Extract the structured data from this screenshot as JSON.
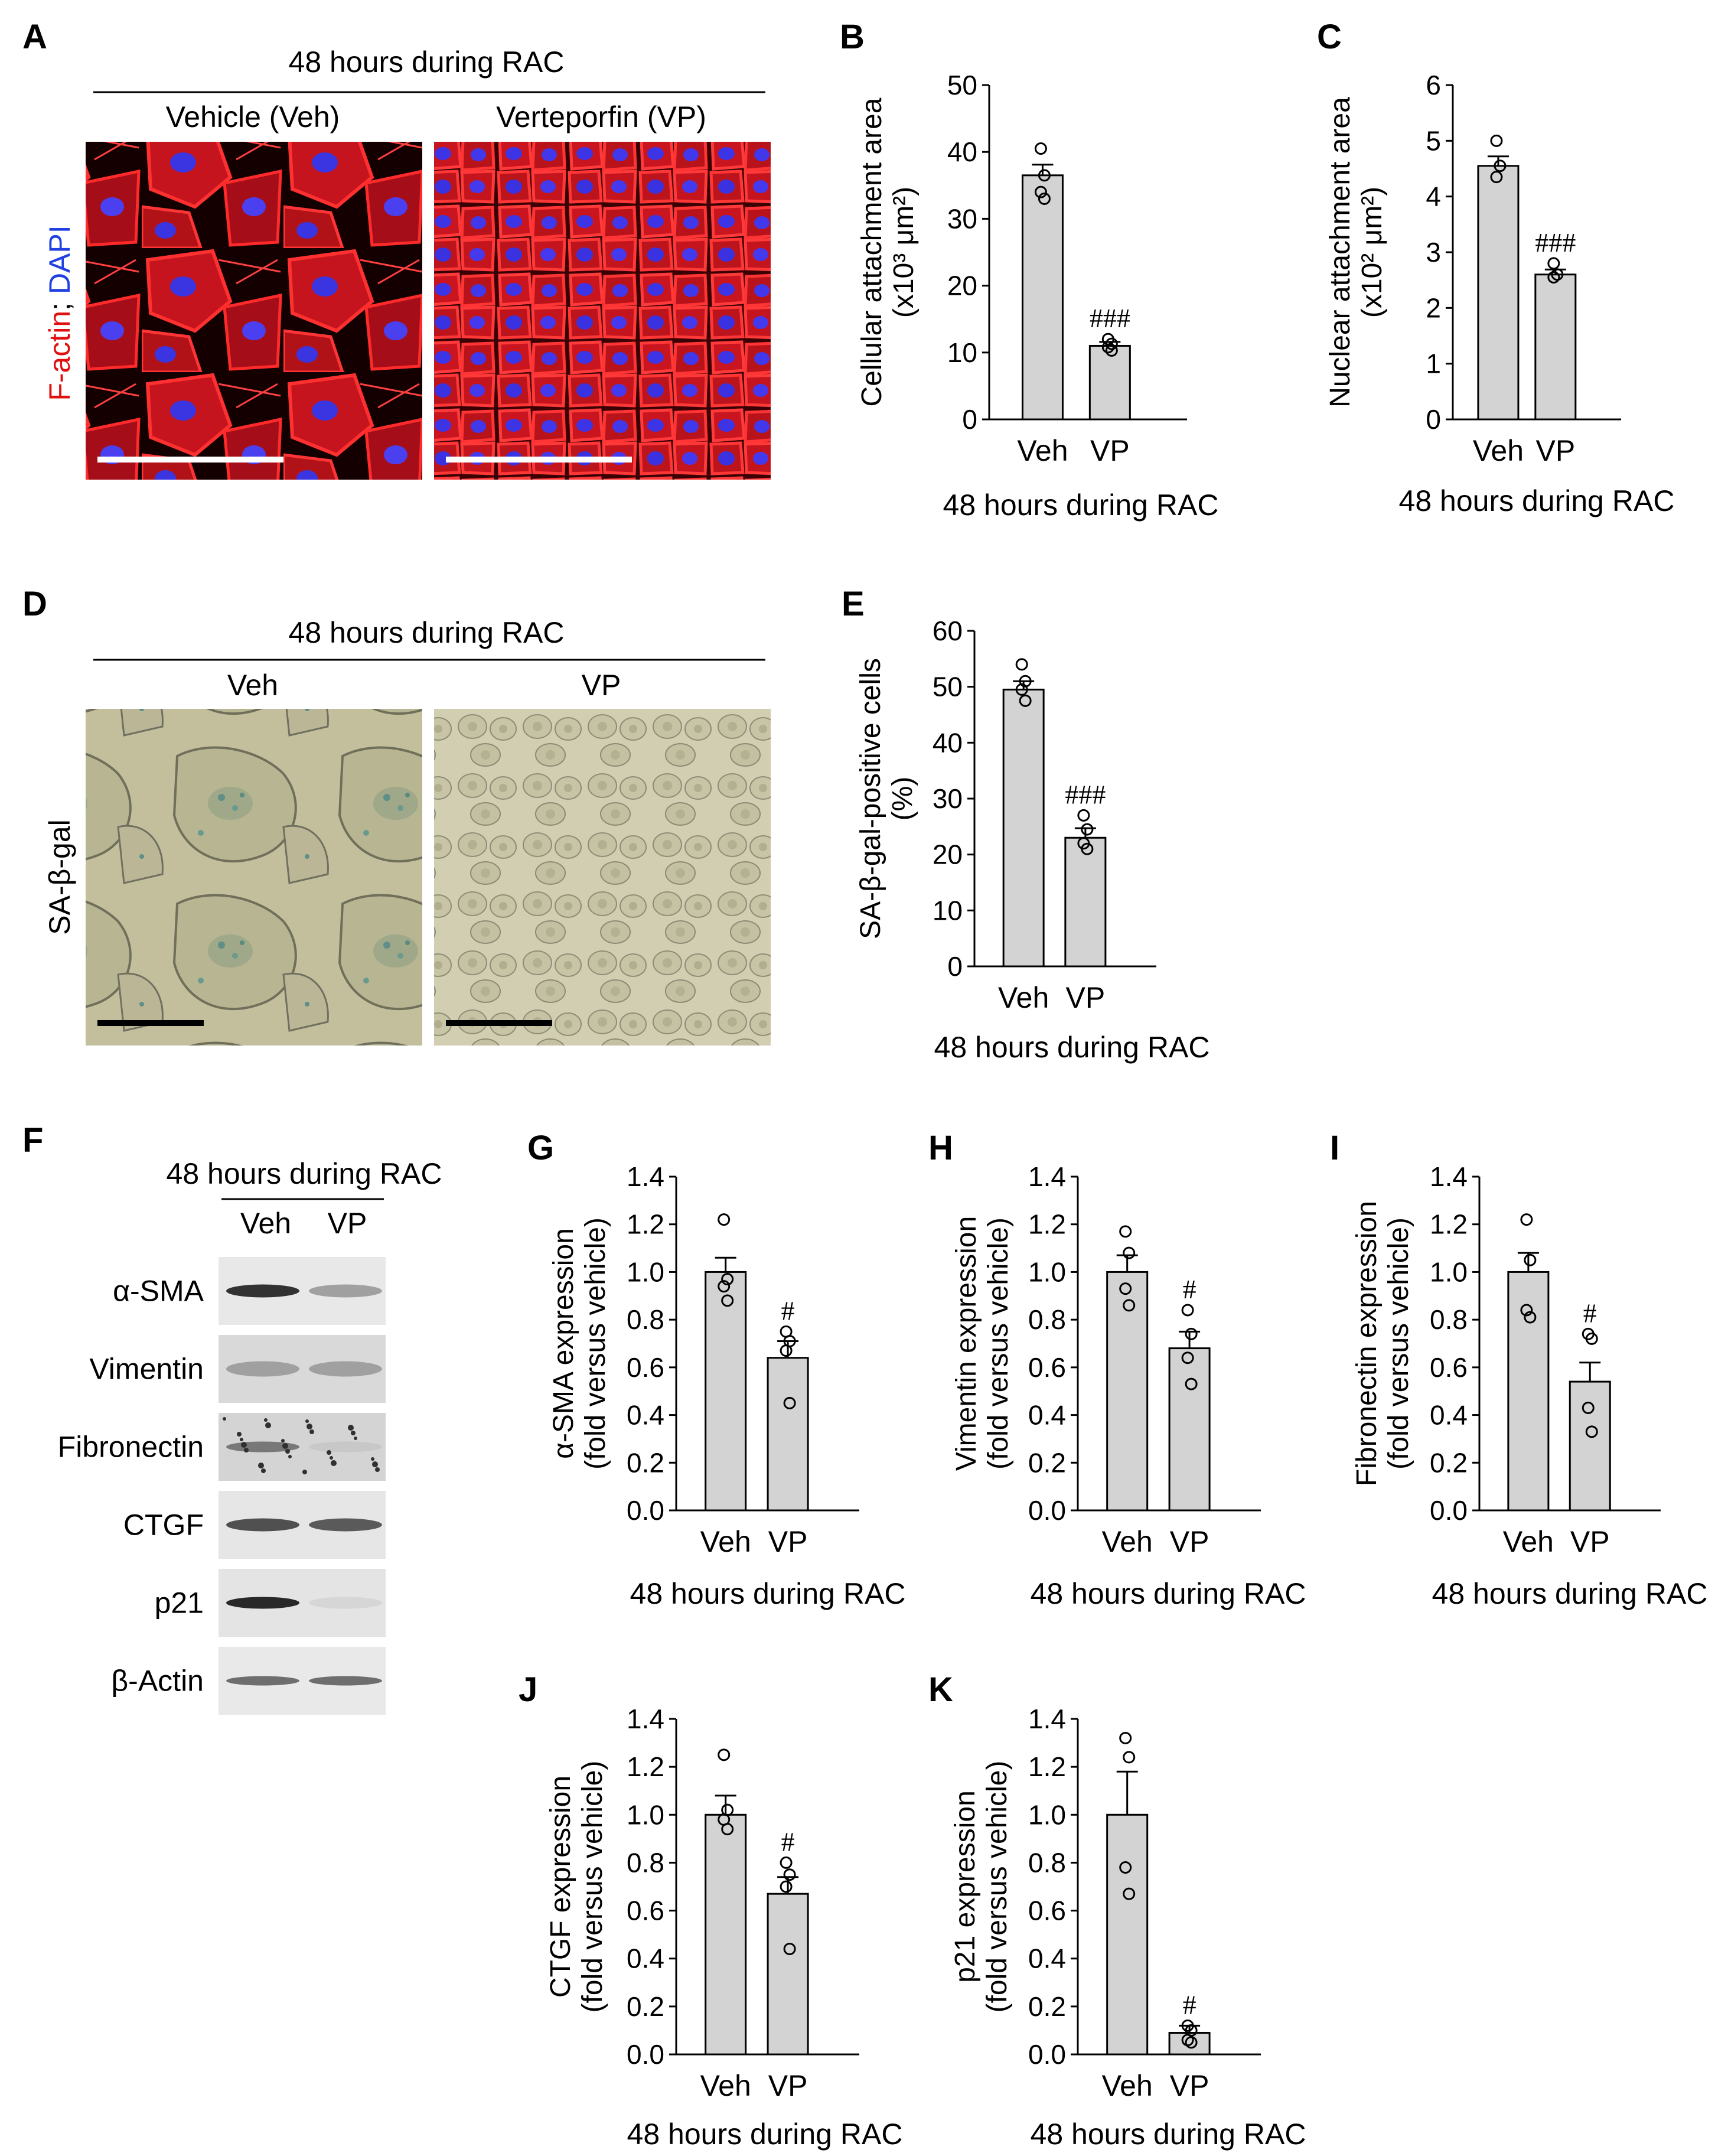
{
  "colors": {
    "bar_fill": "#d3d3d3",
    "bar_stroke": "#000000",
    "factin_label": "#e01010",
    "dapi_label": "#2040e0",
    "fluor_bg": "#0a0000",
    "sabgal_bg": "#c9c3a2"
  },
  "panel_a": {
    "letter": "A",
    "header": "48 hours during RAC",
    "col_labels": [
      "Vehicle (Veh)",
      "Verteporfin (VP)"
    ],
    "side_label_red": "F-actin",
    "side_label_sep": "; ",
    "side_label_blue": "DAPI"
  },
  "panel_d": {
    "letter": "D",
    "header": "48 hours during RAC",
    "col_labels": [
      "Veh",
      "VP"
    ],
    "side_label": "SA-β-gal"
  },
  "panel_f": {
    "letter": "F",
    "header": "48 hours during RAC",
    "col_labels": [
      "Veh",
      "VP"
    ],
    "rows": [
      "α-SMA",
      "Vimentin",
      "Fibronectin",
      "CTGF",
      "p21",
      "β-Actin"
    ]
  },
  "chart_data": [
    {
      "id": "B",
      "type": "bar",
      "letter": "B",
      "categories": [
        "Veh",
        "VP"
      ],
      "values": [
        36.5,
        11.0
      ],
      "errors": [
        1.6,
        0.6
      ],
      "points": [
        [
          40.5,
          36.5,
          34,
          33
        ],
        [
          12,
          11.3,
          10.8,
          10.3
        ]
      ],
      "ylim": [
        0,
        50
      ],
      "yticks": [
        "0",
        "10",
        "20",
        "30",
        "40",
        "50"
      ],
      "ylabel_lines": [
        "Cellular attachment area",
        "(x10³ μm²)"
      ],
      "xlabel": "48 hours during RAC",
      "sig": [
        "",
        "###"
      ]
    },
    {
      "id": "C",
      "type": "bar",
      "letter": "C",
      "categories": [
        "Veh",
        "VP"
      ],
      "values": [
        4.55,
        2.6
      ],
      "errors": [
        0.17,
        0.09
      ],
      "points": [
        [
          5.0,
          4.55,
          4.35
        ],
        [
          2.8,
          2.6,
          2.55
        ]
      ],
      "ylim": [
        0,
        6
      ],
      "yticks": [
        "0",
        "1",
        "2",
        "3",
        "4",
        "5",
        "6"
      ],
      "ylabel_lines": [
        "Nuclear attachment area",
        "(x10² μm²)"
      ],
      "xlabel": "48 hours during RAC",
      "sig": [
        "",
        "###"
      ]
    },
    {
      "id": "E",
      "type": "bar",
      "letter": "E",
      "categories": [
        "Veh",
        "VP"
      ],
      "values": [
        49.5,
        23.0
      ],
      "errors": [
        1.5,
        1.7
      ],
      "points": [
        [
          54,
          51,
          49.5,
          47.5
        ],
        [
          27,
          24.5,
          22,
          21
        ]
      ],
      "ylim": [
        0,
        60
      ],
      "yticks": [
        "0",
        "10",
        "20",
        "30",
        "40",
        "50",
        "60"
      ],
      "ylabel_lines": [
        "SA-β-gal-positive cells",
        "(%)"
      ],
      "xlabel": "48 hours during RAC",
      "sig": [
        "",
        "###"
      ]
    },
    {
      "id": "G",
      "type": "bar",
      "letter": "G",
      "categories": [
        "Veh",
        "VP"
      ],
      "values": [
        1.0,
        0.64
      ],
      "errors": [
        0.06,
        0.07
      ],
      "points": [
        [
          1.22,
          0.97,
          0.94,
          0.88
        ],
        [
          0.75,
          0.71,
          0.67,
          0.45
        ]
      ],
      "ylim": [
        0,
        1.4
      ],
      "yticks": [
        "0.0",
        "0.2",
        "0.4",
        "0.6",
        "0.8",
        "1.0",
        "1.2",
        "1.4"
      ],
      "ylabel_lines": [
        "α-SMA expression",
        "(fold versus vehicle)"
      ],
      "xlabel": "48 hours during RAC",
      "sig": [
        "",
        "#"
      ]
    },
    {
      "id": "H",
      "type": "bar",
      "letter": "H",
      "categories": [
        "Veh",
        "VP"
      ],
      "values": [
        1.0,
        0.68
      ],
      "errors": [
        0.07,
        0.07
      ],
      "points": [
        [
          1.17,
          1.08,
          0.93,
          0.86
        ],
        [
          0.84,
          0.74,
          0.64,
          0.53
        ]
      ],
      "ylim": [
        0,
        1.4
      ],
      "yticks": [
        "0.0",
        "0.2",
        "0.4",
        "0.6",
        "0.8",
        "1.0",
        "1.2",
        "1.4"
      ],
      "ylabel_lines": [
        "Vimentin expression",
        "(fold versus vehicle)"
      ],
      "xlabel": "48 hours during RAC",
      "sig": [
        "",
        "#"
      ]
    },
    {
      "id": "I",
      "type": "bar",
      "letter": "I",
      "categories": [
        "Veh",
        "VP"
      ],
      "values": [
        1.0,
        0.54
      ],
      "errors": [
        0.08,
        0.08
      ],
      "points": [
        [
          1.22,
          1.05,
          0.84,
          0.81
        ],
        [
          0.74,
          0.72,
          0.43,
          0.33
        ]
      ],
      "ylim": [
        0,
        1.4
      ],
      "yticks": [
        "0.0",
        "0.2",
        "0.4",
        "0.6",
        "0.8",
        "1.0",
        "1.2",
        "1.4"
      ],
      "ylabel_lines": [
        "Fibronectin expression",
        "(fold versus vehicle)"
      ],
      "xlabel": "48 hours during RAC",
      "sig": [
        "",
        "#"
      ]
    },
    {
      "id": "J",
      "type": "bar",
      "letter": "J",
      "categories": [
        "Veh",
        "VP"
      ],
      "values": [
        1.0,
        0.67
      ],
      "errors": [
        0.08,
        0.07
      ],
      "points": [
        [
          1.25,
          1.02,
          0.98,
          0.94
        ],
        [
          0.8,
          0.75,
          0.7,
          0.44
        ]
      ],
      "ylim": [
        0,
        1.4
      ],
      "yticks": [
        "0.0",
        "0.2",
        "0.4",
        "0.6",
        "0.8",
        "1.0",
        "1.2",
        "1.4"
      ],
      "ylabel_lines": [
        "CTGF expression",
        "(fold versus vehicle)"
      ],
      "xlabel": "48 hours during RAC",
      "sig": [
        "",
        "#"
      ]
    },
    {
      "id": "K",
      "type": "bar",
      "letter": "K",
      "categories": [
        "Veh",
        "VP"
      ],
      "values": [
        1.0,
        0.09
      ],
      "errors": [
        0.18,
        0.03
      ],
      "points": [
        [
          1.32,
          1.24,
          0.78,
          0.67
        ],
        [
          0.12,
          0.1,
          0.06,
          0.05
        ]
      ],
      "ylim": [
        0,
        1.4
      ],
      "yticks": [
        "0.0",
        "0.2",
        "0.4",
        "0.6",
        "0.8",
        "1.0",
        "1.2",
        "1.4"
      ],
      "ylabel_lines": [
        "p21 expression",
        "(fold versus vehicle)"
      ],
      "xlabel": "48 hours during RAC",
      "sig": [
        "",
        "#"
      ]
    }
  ]
}
